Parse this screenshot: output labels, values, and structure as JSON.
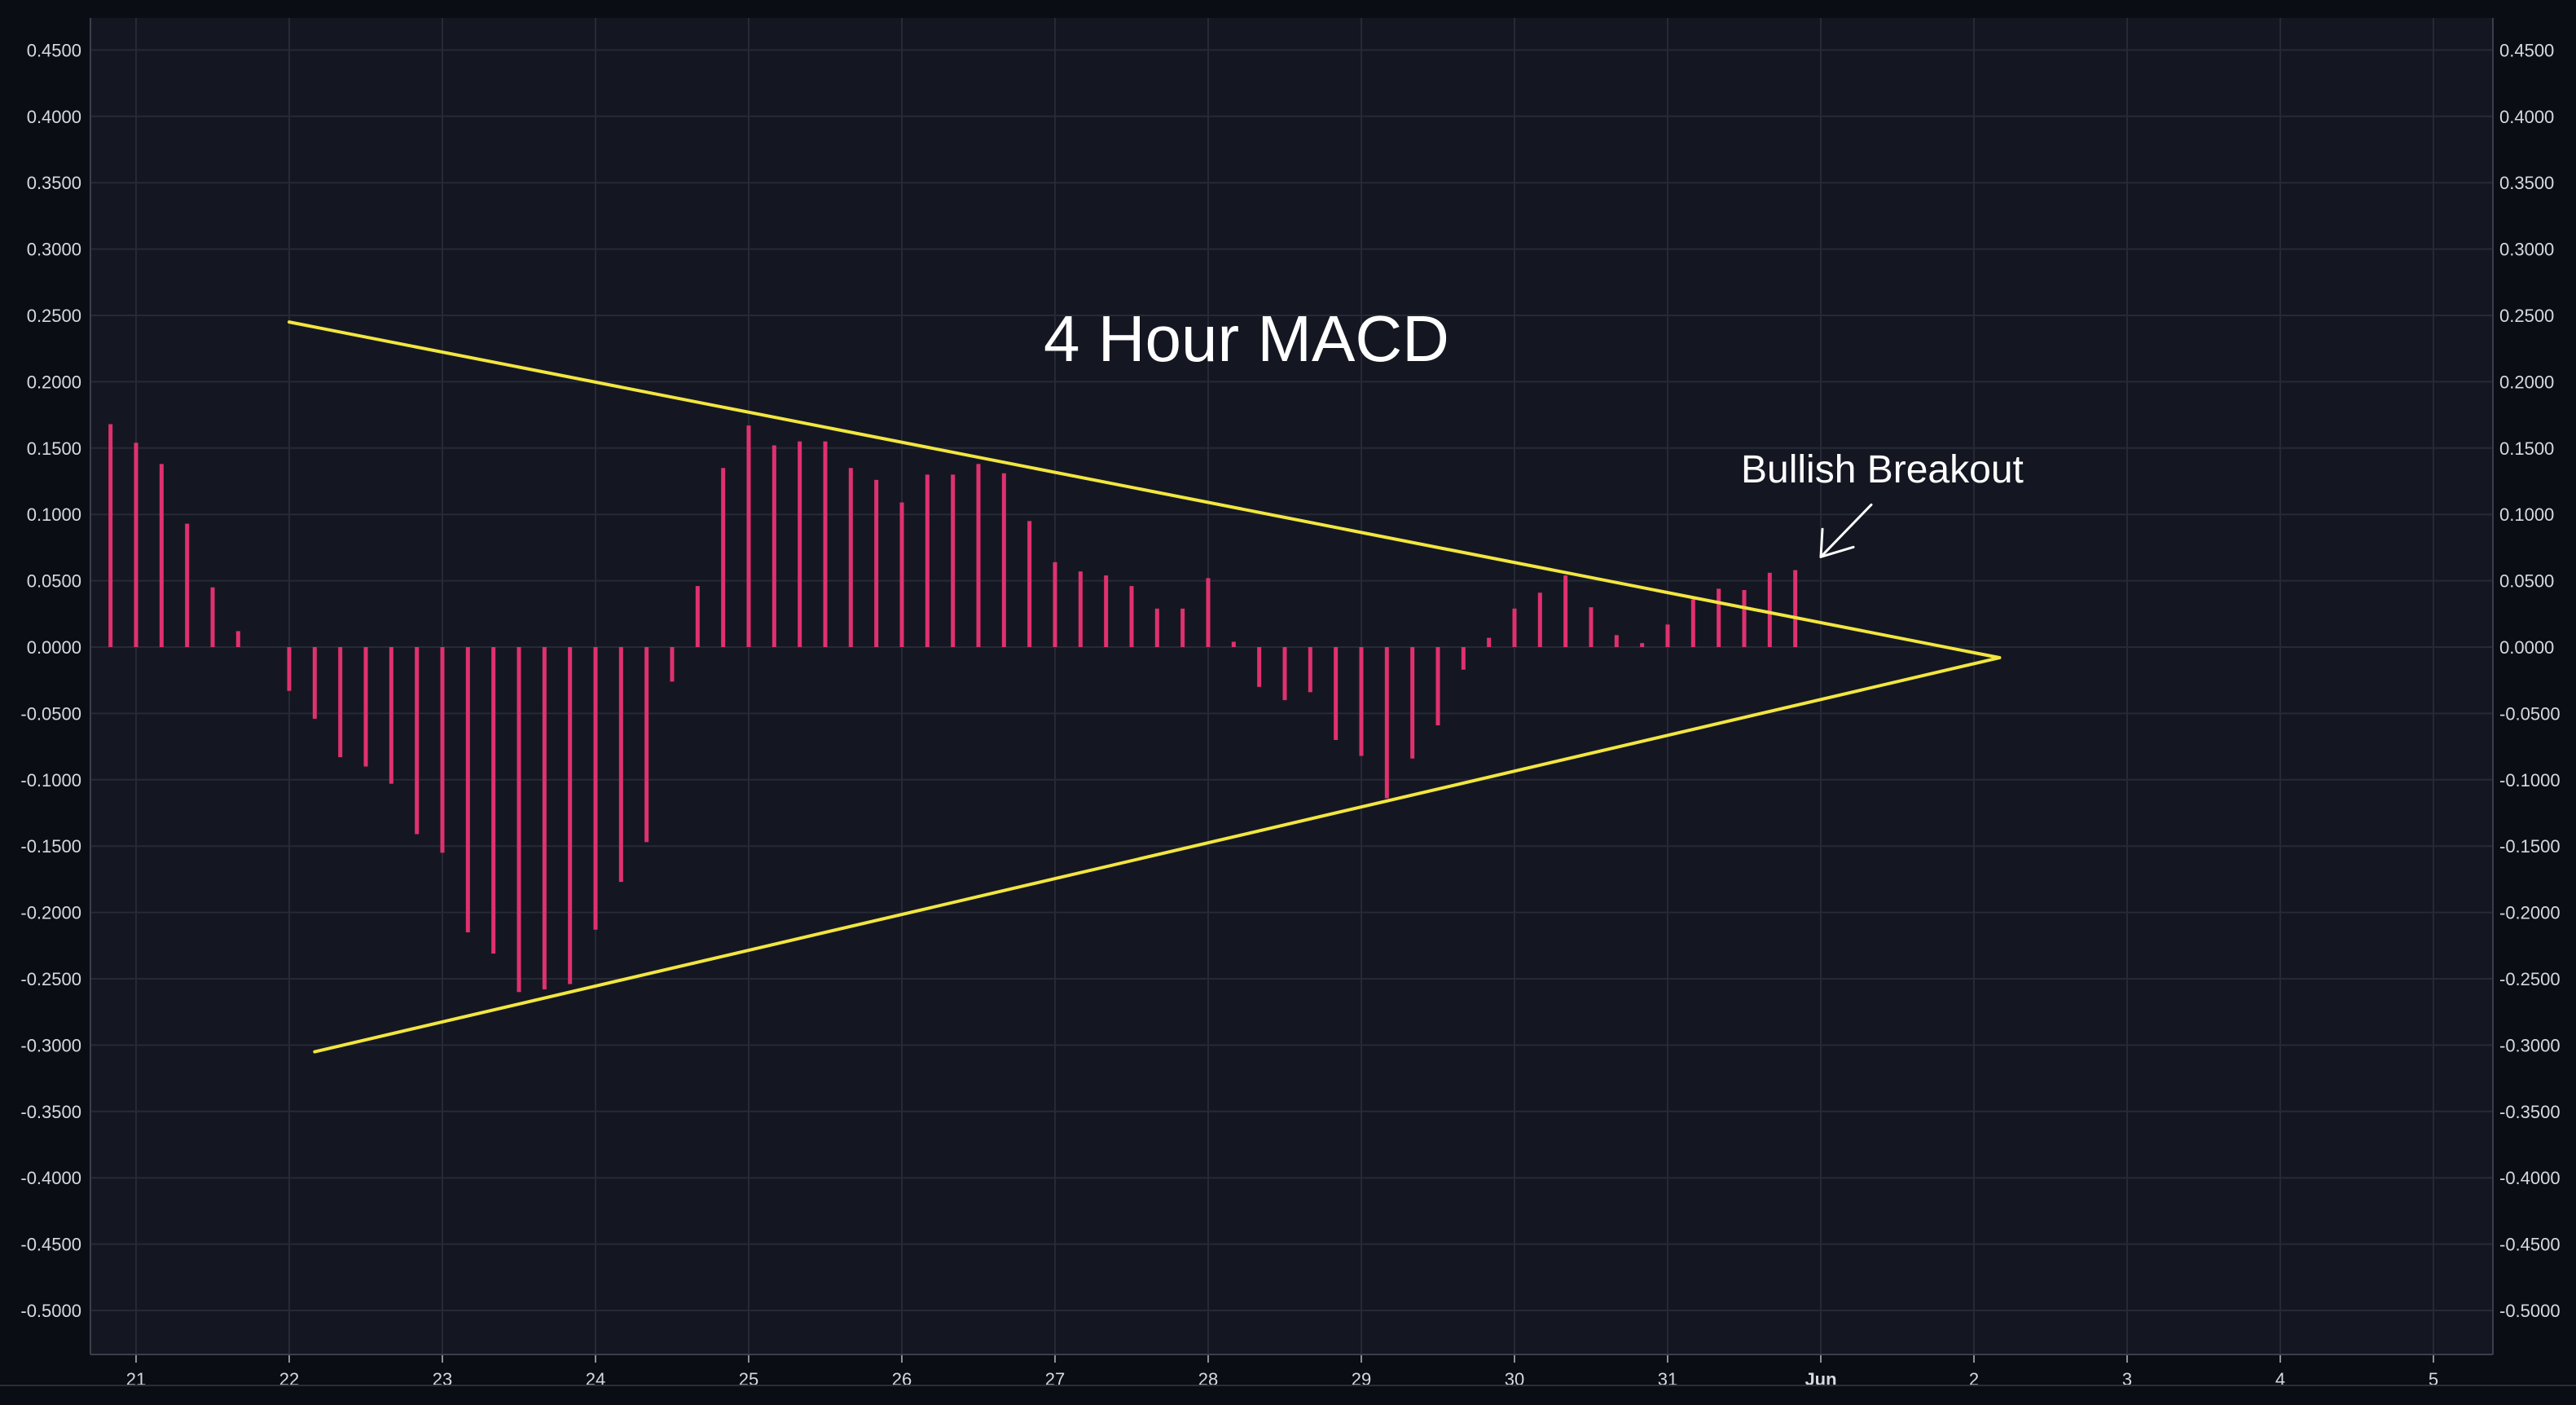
{
  "chart_data": {
    "type": "bar",
    "title": "4 Hour MACD",
    "xlabel": "",
    "ylabel": "",
    "ylim": [
      -0.52,
      0.46
    ],
    "grid": true,
    "legend": "none",
    "colors": {
      "background": "#141722",
      "bars": "#e0316f",
      "trendlines": "#f2e640",
      "grid": "#262a36",
      "text": "#d6d9e0"
    },
    "y_ticks": [
      "0.4500",
      "0.4000",
      "0.3500",
      "0.3000",
      "0.2500",
      "0.2000",
      "0.1500",
      "0.1000",
      "0.0500",
      "0.0000",
      "-0.0500",
      "-0.1000",
      "-0.1500",
      "-0.2000",
      "-0.2500",
      "-0.3000",
      "-0.3500",
      "-0.4000",
      "-0.4500",
      "-0.5000"
    ],
    "x_ticks": [
      "21",
      "22",
      "23",
      "24",
      "25",
      "26",
      "27",
      "28",
      "29",
      "30",
      "31",
      "Jun",
      "2",
      "3",
      "4",
      "5"
    ],
    "series": [
      {
        "values": [
          {
            "x": "May 20 20:00",
            "y": 0.168
          },
          {
            "x": "May 21 00:00",
            "y": 0.154
          },
          {
            "x": "May 21 04:00",
            "y": 0.138
          },
          {
            "x": "May 21 08:00",
            "y": 0.093
          },
          {
            "x": "May 21 12:00",
            "y": 0.045
          },
          {
            "x": "May 21 16:00",
            "y": 0.012
          },
          {
            "x": "May 22 00:00",
            "y": -0.033
          },
          {
            "x": "May 22 04:00",
            "y": -0.054
          },
          {
            "x": "May 22 08:00",
            "y": -0.083
          },
          {
            "x": "May 22 12:00",
            "y": -0.09
          },
          {
            "x": "May 22 16:00",
            "y": -0.103
          },
          {
            "x": "May 22 20:00",
            "y": -0.141
          },
          {
            "x": "May 23 00:00",
            "y": -0.155
          },
          {
            "x": "May 23 04:00",
            "y": -0.215
          },
          {
            "x": "May 23 08:00",
            "y": -0.231
          },
          {
            "x": "May 23 12:00",
            "y": -0.26
          },
          {
            "x": "May 23 16:00",
            "y": -0.258
          },
          {
            "x": "May 23 20:00",
            "y": -0.254
          },
          {
            "x": "May 24 00:00",
            "y": -0.213
          },
          {
            "x": "May 24 04:00",
            "y": -0.177
          },
          {
            "x": "May 24 08:00",
            "y": -0.147
          },
          {
            "x": "May 24 12:00",
            "y": -0.026
          },
          {
            "x": "May 24 16:00",
            "y": 0.046
          },
          {
            "x": "May 24 20:00",
            "y": 0.135
          },
          {
            "x": "May 25 00:00",
            "y": 0.167
          },
          {
            "x": "May 25 04:00",
            "y": 0.152
          },
          {
            "x": "May 25 08:00",
            "y": 0.155
          },
          {
            "x": "May 25 12:00",
            "y": 0.155
          },
          {
            "x": "May 25 16:00",
            "y": 0.135
          },
          {
            "x": "May 25 20:00",
            "y": 0.126
          },
          {
            "x": "May 26 00:00",
            "y": 0.109
          },
          {
            "x": "May 26 04:00",
            "y": 0.13
          },
          {
            "x": "May 26 08:00",
            "y": 0.13
          },
          {
            "x": "May 26 12:00",
            "y": 0.138
          },
          {
            "x": "May 26 16:00",
            "y": 0.131
          },
          {
            "x": "May 26 20:00",
            "y": 0.095
          },
          {
            "x": "May 27 00:00",
            "y": 0.064
          },
          {
            "x": "May 27 04:00",
            "y": 0.057
          },
          {
            "x": "May 27 08:00",
            "y": 0.054
          },
          {
            "x": "May 27 12:00",
            "y": 0.046
          },
          {
            "x": "May 27 16:00",
            "y": 0.029
          },
          {
            "x": "May 27 20:00",
            "y": 0.029
          },
          {
            "x": "May 28 00:00",
            "y": 0.052
          },
          {
            "x": "May 28 04:00",
            "y": 0.004
          },
          {
            "x": "May 28 08:00",
            "y": -0.03
          },
          {
            "x": "May 28 12:00",
            "y": -0.04
          },
          {
            "x": "May 28 16:00",
            "y": -0.034
          },
          {
            "x": "May 28 20:00",
            "y": -0.07
          },
          {
            "x": "May 29 00:00",
            "y": -0.082
          },
          {
            "x": "May 29 04:00",
            "y": -0.114
          },
          {
            "x": "May 29 08:00",
            "y": -0.084
          },
          {
            "x": "May 29 12:00",
            "y": -0.059
          },
          {
            "x": "May 29 16:00",
            "y": -0.017
          },
          {
            "x": "May 29 20:00",
            "y": 0.007
          },
          {
            "x": "May 30 00:00",
            "y": 0.029
          },
          {
            "x": "May 30 04:00",
            "y": 0.041
          },
          {
            "x": "May 30 08:00",
            "y": 0.054
          },
          {
            "x": "May 30 12:00",
            "y": 0.03
          },
          {
            "x": "May 30 16:00",
            "y": 0.009
          },
          {
            "x": "May 30 20:00",
            "y": 0.003
          },
          {
            "x": "May 31 00:00",
            "y": 0.017
          },
          {
            "x": "May 31 04:00",
            "y": 0.036
          },
          {
            "x": "May 31 08:00",
            "y": 0.044
          },
          {
            "x": "May 31 12:00",
            "y": 0.043
          },
          {
            "x": "May 31 16:00",
            "y": 0.056
          },
          {
            "x": "May 31 20:00",
            "y": 0.058
          }
        ]
      }
    ],
    "trendlines": [
      {
        "from": {
          "x": "May 22 00:00",
          "y": 0.245
        },
        "to": {
          "x": "Jun 2 04:00",
          "y": -0.008
        }
      },
      {
        "from": {
          "x": "May 22 04:00",
          "y": -0.305
        },
        "to": {
          "x": "Jun 2 04:00",
          "y": -0.008
        }
      }
    ],
    "annotations": [
      {
        "text": "Bullish Breakout",
        "arrow_to": {
          "x": "Jun 1 00:00",
          "y": 0.068
        }
      }
    ]
  }
}
